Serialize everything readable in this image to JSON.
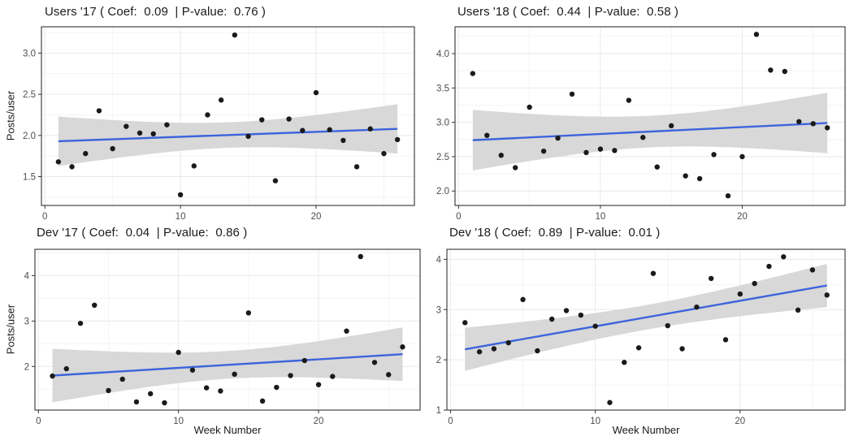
{
  "axis": {
    "x_label": "Week Number",
    "y_label": "Posts/user"
  },
  "style": {
    "trend_color": "#3D64DC",
    "band_color": "#D8D8D8",
    "point_color": "#1A1A1A",
    "grid_major_color": "#E9E9E9",
    "grid_minor_color": "#F4F4F4",
    "border_color": "#333333",
    "tick_color": "#333333",
    "tick_text_color": "#4D4D4D",
    "background": "#FFFFFF"
  },
  "chart_data": [
    {
      "id": "users17",
      "type": "scatter",
      "title": "Users '17 ( Coef:  0.09  | P-value:  0.76 )",
      "series": "Users '17",
      "coef": 0.09,
      "p_value": 0.76,
      "xlabel": "Week Number",
      "ylabel": "Posts/user",
      "x": [
        1,
        2,
        3,
        4,
        5,
        6,
        7,
        8,
        9,
        10,
        11,
        12,
        13,
        14,
        15,
        16,
        17,
        18,
        19,
        20,
        21,
        22,
        23,
        24,
        25,
        26
      ],
      "y": [
        1.68,
        1.62,
        1.78,
        2.3,
        1.84,
        2.11,
        2.03,
        2.02,
        2.13,
        1.28,
        1.63,
        2.25,
        2.43,
        3.22,
        1.99,
        2.19,
        1.45,
        2.2,
        2.06,
        2.52,
        2.07,
        1.94,
        1.62,
        2.08,
        1.78,
        1.95
      ],
      "trend": {
        "x_start": 1,
        "y_start": 1.93,
        "x_end": 26,
        "y_end": 2.08
      },
      "ci_halfwidth_mid": 0.155,
      "ci_halfwidth_end": 0.3,
      "xlim": [
        -0.25,
        27.25
      ],
      "ylim": [
        1.15,
        3.32
      ],
      "xticks": [
        0,
        10,
        20
      ],
      "xtick_labels": [
        "0",
        "10",
        "20"
      ],
      "yticks": [
        1.5,
        2.0,
        2.5,
        3.0
      ],
      "ytick_labels": [
        "1.5",
        "2.0",
        "2.5",
        "3.0"
      ],
      "grid": true,
      "legend": "none"
    },
    {
      "id": "users18",
      "type": "scatter",
      "title": "Users '18 ( Coef:  0.44  | P-value:  0.58 )",
      "series": "Users '18",
      "coef": 0.44,
      "p_value": 0.58,
      "xlabel": "Week Number",
      "ylabel": "Posts/user",
      "x": [
        1,
        2,
        3,
        4,
        5,
        6,
        7,
        8,
        9,
        10,
        11,
        12,
        13,
        14,
        15,
        16,
        17,
        18,
        19,
        20,
        21,
        22,
        23,
        24,
        25,
        26
      ],
      "y": [
        3.71,
        2.81,
        2.52,
        2.34,
        3.22,
        2.58,
        2.77,
        3.41,
        2.56,
        2.61,
        2.59,
        3.32,
        2.78,
        2.35,
        2.95,
        2.22,
        2.18,
        2.53,
        1.93,
        2.5,
        4.28,
        3.76,
        3.74,
        3.01,
        2.98,
        2.92
      ],
      "trend": {
        "x_start": 1,
        "y_start": 2.74,
        "x_end": 26,
        "y_end": 2.99
      },
      "ci_halfwidth_mid": 0.23,
      "ci_halfwidth_end": 0.44,
      "xlim": [
        -0.25,
        27.25
      ],
      "ylim": [
        1.79,
        4.39
      ],
      "xticks": [
        0,
        10,
        20
      ],
      "xtick_labels": [
        "0",
        "10",
        "20"
      ],
      "yticks": [
        2.0,
        2.5,
        3.0,
        3.5,
        4.0
      ],
      "ytick_labels": [
        "2.0",
        "2.5",
        "3.0",
        "3.5",
        "4.0"
      ],
      "grid": true,
      "legend": "none"
    },
    {
      "id": "dev17",
      "type": "scatter",
      "title": "Dev '17 ( Coef:  0.04  | P-value:  0.86 )",
      "series": "Dev '17",
      "coef": 0.04,
      "p_value": 0.86,
      "xlabel": "Week Number",
      "ylabel": "Posts/user",
      "x": [
        1,
        2,
        3,
        4,
        5,
        6,
        7,
        8,
        9,
        10,
        11,
        12,
        13,
        14,
        15,
        16,
        17,
        18,
        19,
        20,
        21,
        22,
        23,
        24,
        25,
        26
      ],
      "y": [
        1.79,
        1.95,
        2.95,
        3.35,
        1.47,
        1.72,
        1.22,
        1.4,
        1.2,
        2.31,
        1.92,
        1.53,
        1.46,
        1.83,
        3.18,
        1.24,
        1.54,
        1.8,
        2.13,
        1.6,
        1.78,
        2.78,
        4.42,
        2.09,
        1.82,
        2.43
      ],
      "trend": {
        "x_start": 1,
        "y_start": 1.8,
        "x_end": 26,
        "y_end": 2.27
      },
      "ci_halfwidth_mid": 0.305,
      "ci_halfwidth_end": 0.59,
      "xlim": [
        -0.25,
        27.25
      ],
      "ylim": [
        1.04,
        4.58
      ],
      "xticks": [
        0,
        10,
        20
      ],
      "xtick_labels": [
        "0",
        "10",
        "20"
      ],
      "yticks": [
        2,
        3,
        4
      ],
      "ytick_labels": [
        "2",
        "3",
        "4"
      ],
      "grid": true,
      "legend": "none"
    },
    {
      "id": "dev18",
      "type": "scatter",
      "title": "Dev '18 ( Coef:  0.89  | P-value:  0.01 )",
      "series": "Dev '18",
      "coef": 0.89,
      "p_value": 0.01,
      "xlabel": "Week Number",
      "ylabel": "Posts/user",
      "x": [
        1,
        2,
        3,
        4,
        5,
        6,
        7,
        8,
        9,
        10,
        11,
        12,
        13,
        14,
        15,
        16,
        17,
        18,
        19,
        20,
        21,
        22,
        23,
        24,
        25,
        26
      ],
      "y": [
        2.74,
        2.16,
        2.22,
        2.34,
        3.2,
        2.18,
        2.81,
        2.98,
        2.89,
        2.67,
        1.15,
        1.95,
        2.24,
        3.72,
        2.68,
        2.22,
        3.05,
        3.62,
        2.4,
        3.31,
        3.52,
        3.86,
        4.05,
        2.99,
        3.79,
        3.29
      ],
      "trend": {
        "x_start": 1,
        "y_start": 2.21,
        "x_end": 26,
        "y_end": 3.48
      },
      "ci_halfwidth_mid": 0.245,
      "ci_halfwidth_end": 0.43,
      "xlim": [
        -0.25,
        27.25
      ],
      "ylim": [
        1.0,
        4.2
      ],
      "xticks": [
        0,
        10,
        20
      ],
      "xtick_labels": [
        "0",
        "10",
        "20"
      ],
      "yticks": [
        1,
        2,
        3,
        4
      ],
      "ytick_labels": [
        "1",
        "2",
        "3",
        "4"
      ],
      "grid": true,
      "legend": "none"
    }
  ]
}
